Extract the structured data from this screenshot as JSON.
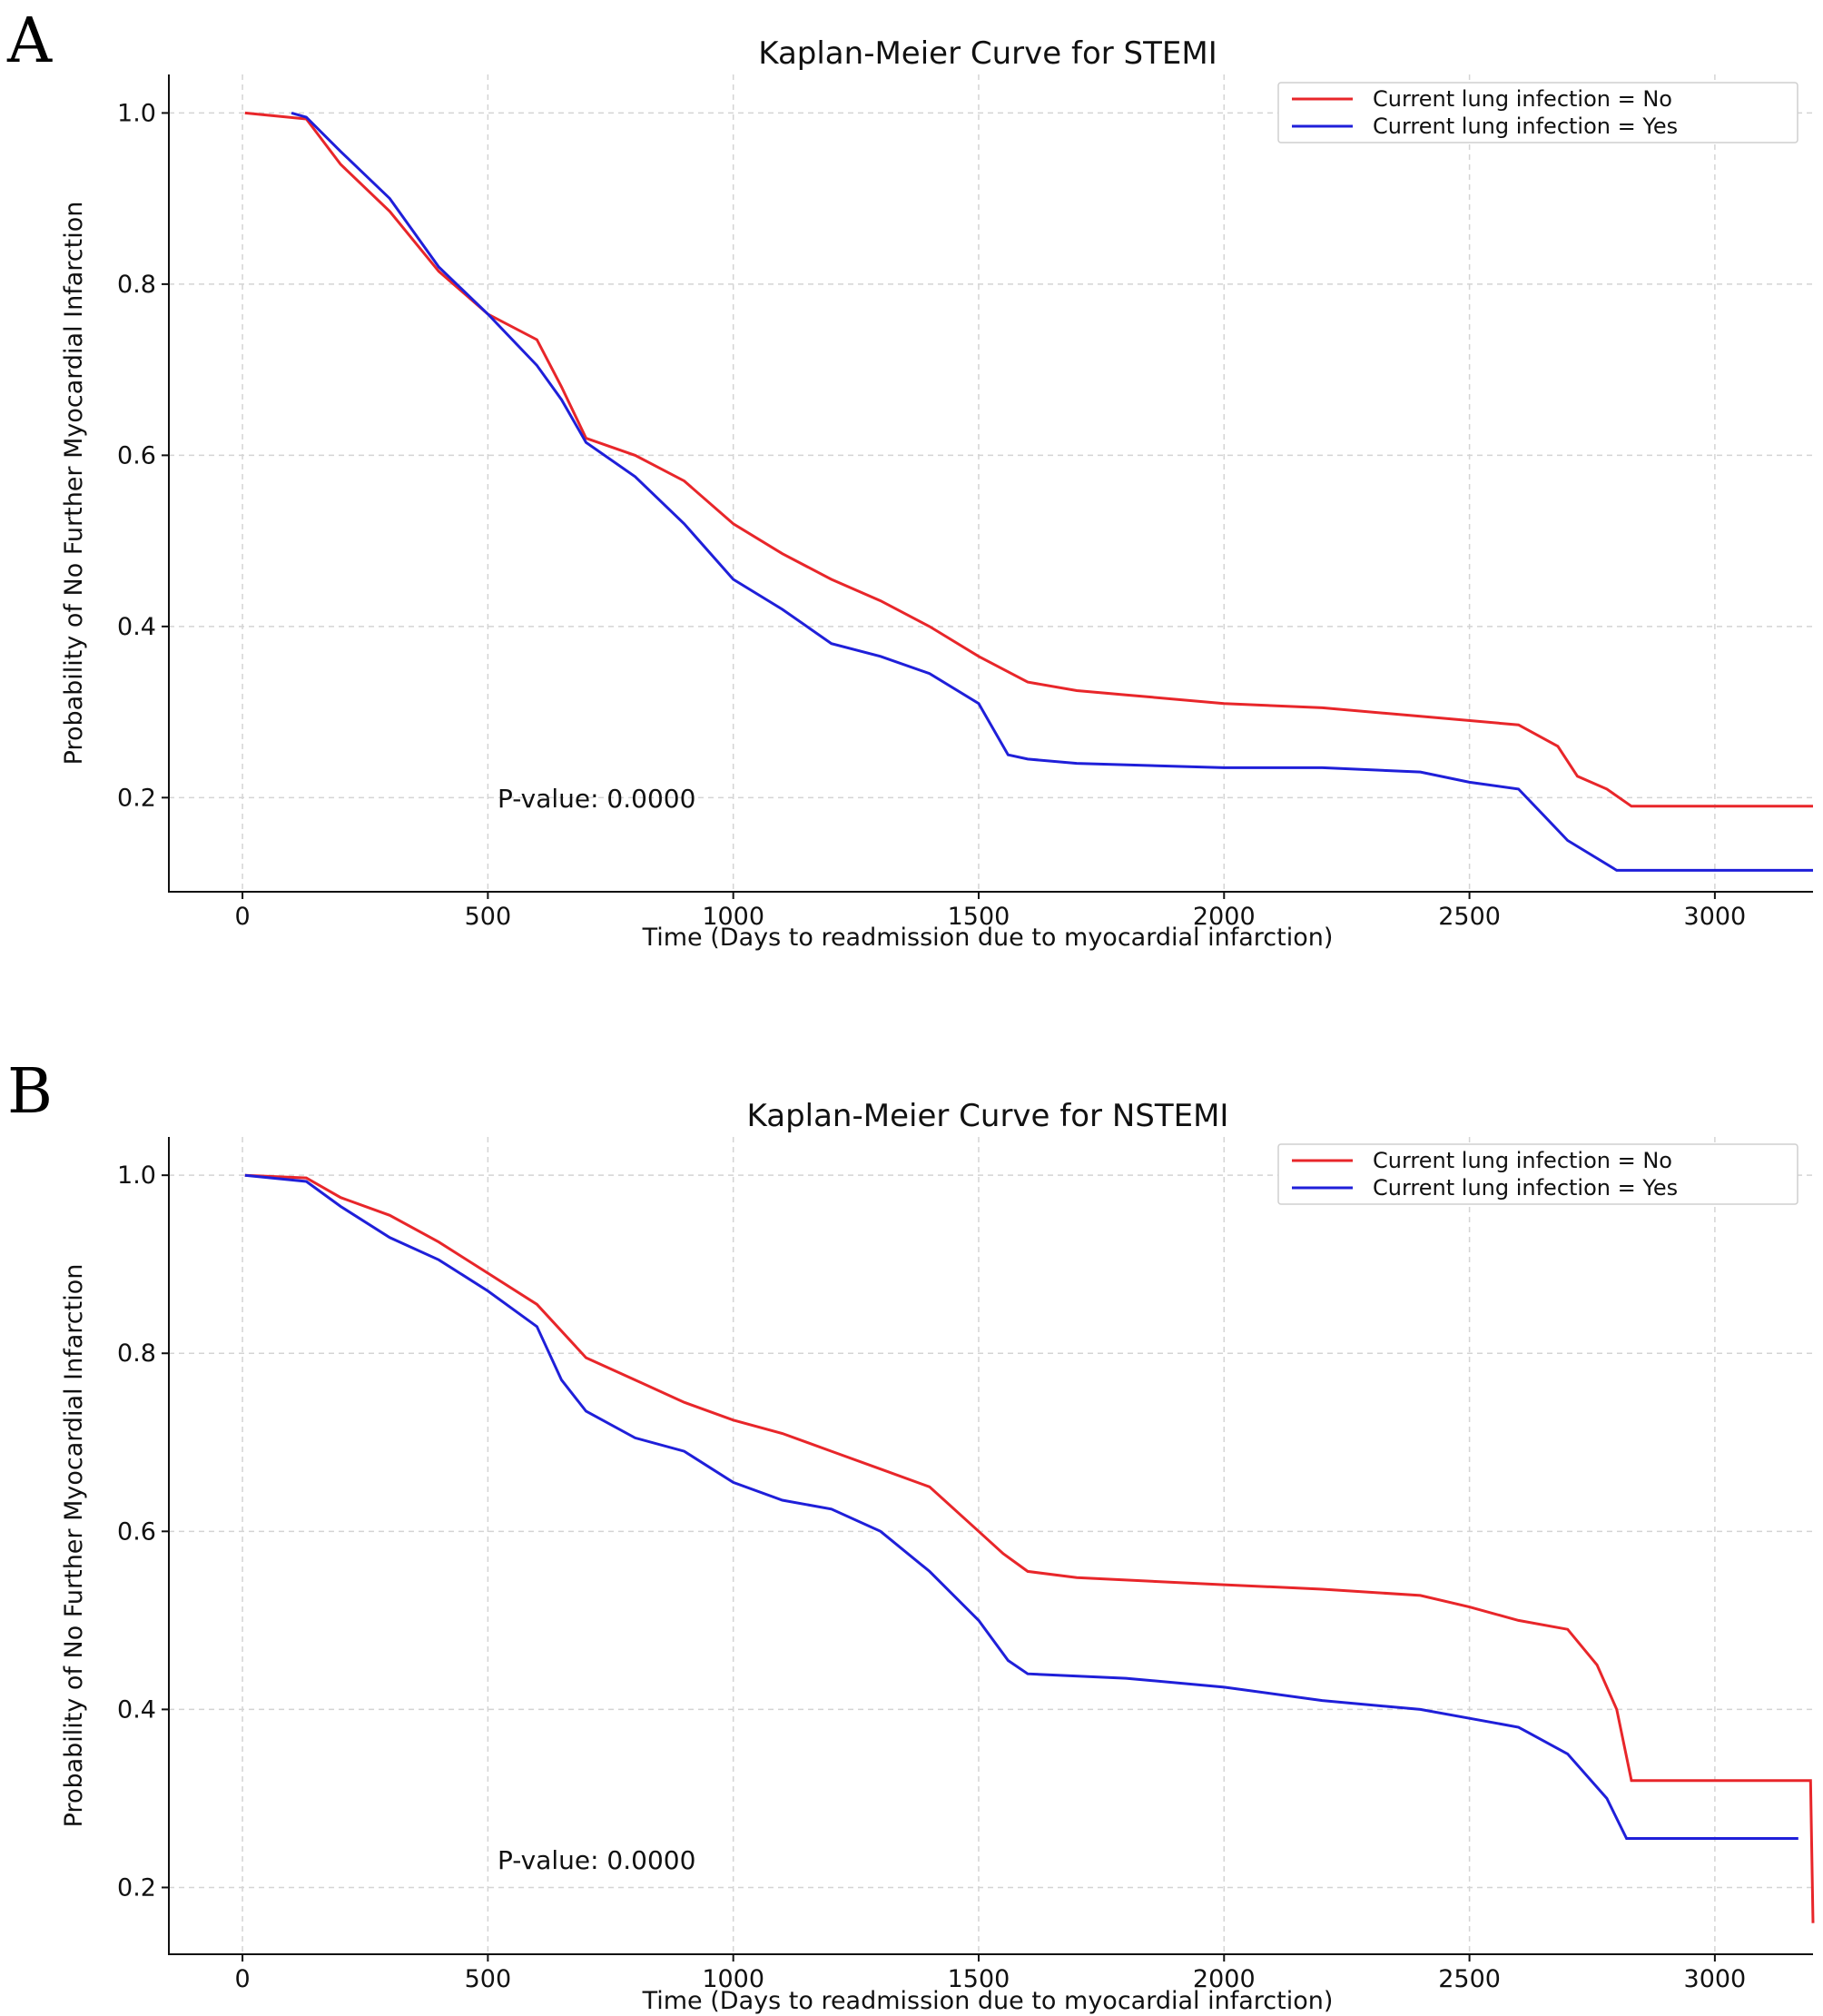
{
  "chart_data": [
    {
      "type": "line",
      "panel": "A",
      "title": "Kaplan-Meier Curve for STEMI",
      "xlabel": "Time (Days to readmission due to myocardial infarction)",
      "ylabel": "Probability of No Further Myocardial Infarction",
      "xlim": [
        -150,
        3200
      ],
      "ylim": [
        0.09,
        1.045
      ],
      "xticks": [
        0,
        500,
        1000,
        1500,
        2000,
        2500,
        3000
      ],
      "yticks": [
        0.2,
        0.4,
        0.6,
        0.8,
        1.0
      ],
      "xtick_labels": [
        "0",
        "500",
        "1000",
        "1500",
        "2000",
        "2500",
        "3000"
      ],
      "ytick_labels": [
        "0.2",
        "0.4",
        "0.6",
        "0.8",
        "1.0"
      ],
      "grid": true,
      "legend_position": "top-right",
      "annotation": "P-value: 0.0000",
      "series": [
        {
          "name": "Current lung infection = No",
          "color": "#e8262a",
          "x": [
            5,
            130,
            200,
            300,
            400,
            500,
            600,
            650,
            700,
            800,
            900,
            1000,
            1100,
            1200,
            1300,
            1400,
            1500,
            1600,
            1700,
            1800,
            2000,
            2200,
            2400,
            2600,
            2680,
            2720,
            2780,
            2830,
            3200
          ],
          "y": [
            1.0,
            0.993,
            0.94,
            0.885,
            0.815,
            0.765,
            0.735,
            0.68,
            0.62,
            0.6,
            0.57,
            0.52,
            0.485,
            0.455,
            0.43,
            0.4,
            0.365,
            0.335,
            0.325,
            0.32,
            0.31,
            0.305,
            0.295,
            0.285,
            0.26,
            0.225,
            0.21,
            0.19,
            0.19
          ]
        },
        {
          "name": "Current lung infection = Yes",
          "color": "#1f1fd9",
          "x": [
            100,
            130,
            200,
            300,
            400,
            500,
            600,
            650,
            700,
            800,
            900,
            1000,
            1100,
            1200,
            1300,
            1400,
            1500,
            1560,
            1600,
            1700,
            2000,
            2200,
            2400,
            2500,
            2600,
            2650,
            2700,
            2800,
            3200
          ],
          "y": [
            1.0,
            0.995,
            0.955,
            0.9,
            0.82,
            0.765,
            0.705,
            0.665,
            0.615,
            0.575,
            0.52,
            0.455,
            0.42,
            0.38,
            0.365,
            0.345,
            0.31,
            0.25,
            0.245,
            0.24,
            0.235,
            0.235,
            0.23,
            0.218,
            0.21,
            0.18,
            0.15,
            0.115,
            0.115
          ]
        }
      ]
    },
    {
      "type": "line",
      "panel": "B",
      "title": "Kaplan-Meier Curve for NSTEMI",
      "xlabel": "Time (Days to readmission due to myocardial infarction)",
      "ylabel": "Probability of No Further Myocardial Infarction",
      "xlim": [
        -150,
        3200
      ],
      "ylim": [
        0.125,
        1.043
      ],
      "xticks": [
        0,
        500,
        1000,
        1500,
        2000,
        2500,
        3000
      ],
      "yticks": [
        0.2,
        0.4,
        0.6,
        0.8,
        1.0
      ],
      "xtick_labels": [
        "0",
        "500",
        "1000",
        "1500",
        "2000",
        "2500",
        "3000"
      ],
      "ytick_labels": [
        "0.2",
        "0.4",
        "0.6",
        "0.8",
        "1.0"
      ],
      "grid": true,
      "legend_position": "top-right",
      "annotation": "P-value: 0.0000",
      "series": [
        {
          "name": "Current lung infection = No",
          "color": "#e8262a",
          "x": [
            5,
            130,
            200,
            300,
            400,
            500,
            600,
            700,
            800,
            900,
            1000,
            1100,
            1200,
            1300,
            1400,
            1500,
            1550,
            1600,
            1700,
            2000,
            2200,
            2400,
            2500,
            2600,
            2700,
            2760,
            2800,
            2830,
            3195,
            3200
          ],
          "y": [
            1.0,
            0.997,
            0.975,
            0.955,
            0.925,
            0.89,
            0.855,
            0.795,
            0.77,
            0.745,
            0.725,
            0.71,
            0.69,
            0.67,
            0.65,
            0.6,
            0.575,
            0.555,
            0.548,
            0.54,
            0.535,
            0.528,
            0.515,
            0.5,
            0.49,
            0.45,
            0.4,
            0.32,
            0.32,
            0.16
          ]
        },
        {
          "name": "Current lung infection = Yes",
          "color": "#1f1fd9",
          "x": [
            5,
            130,
            200,
            300,
            400,
            500,
            600,
            650,
            700,
            800,
            900,
            1000,
            1100,
            1200,
            1300,
            1400,
            1500,
            1560,
            1600,
            1800,
            2000,
            2200,
            2400,
            2500,
            2600,
            2700,
            2780,
            2820,
            3170
          ],
          "y": [
            1.0,
            0.993,
            0.965,
            0.93,
            0.905,
            0.87,
            0.83,
            0.77,
            0.735,
            0.705,
            0.69,
            0.655,
            0.635,
            0.625,
            0.6,
            0.555,
            0.5,
            0.455,
            0.44,
            0.435,
            0.425,
            0.41,
            0.4,
            0.39,
            0.38,
            0.35,
            0.3,
            0.255,
            0.255
          ]
        }
      ]
    }
  ]
}
